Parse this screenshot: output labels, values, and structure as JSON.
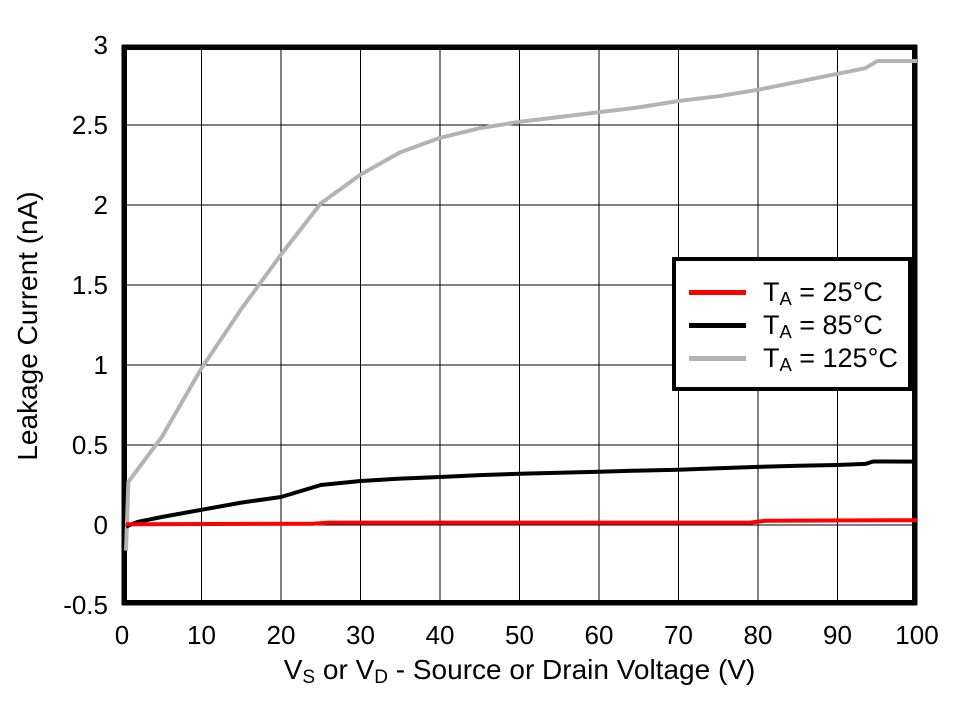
{
  "figure": {
    "y_axis": {
      "title": "Leakage Current (nA)",
      "ticks": [
        {
          "label": "3",
          "value": 3
        },
        {
          "label": "2.5",
          "value": 2.5
        },
        {
          "label": "2",
          "value": 2
        },
        {
          "label": "1.5",
          "value": 1.5
        },
        {
          "label": "1",
          "value": 1
        },
        {
          "label": "0.5",
          "value": 0.5
        },
        {
          "label": "0",
          "value": 0
        },
        {
          "label": "-0.5",
          "value": -0.5
        }
      ]
    },
    "x_axis": {
      "title_parts": [
        {
          "text": "V"
        },
        {
          "text": "S",
          "sub": true
        },
        {
          "text": " or V"
        },
        {
          "text": "D",
          "sub": true
        },
        {
          "text": " - Source or Drain Voltage (V)"
        }
      ],
      "ticks": [
        {
          "label": "0",
          "value": 0
        },
        {
          "label": "10",
          "value": 10
        },
        {
          "label": "20",
          "value": 20
        },
        {
          "label": "30",
          "value": 30
        },
        {
          "label": "40",
          "value": 40
        },
        {
          "label": "50",
          "value": 50
        },
        {
          "label": "60",
          "value": 60
        },
        {
          "label": "70",
          "value": 70
        },
        {
          "label": "80",
          "value": 80
        },
        {
          "label": "90",
          "value": 90
        },
        {
          "label": "100",
          "value": 100
        }
      ]
    },
    "legend": [
      {
        "pre": "T",
        "sub": "A",
        "rest": " = 25°C",
        "color": "#ff0000",
        "id": "ta-25c"
      },
      {
        "pre": "T",
        "sub": "A",
        "rest": " = 85°C",
        "color": "#000000",
        "id": "ta-85c"
      },
      {
        "pre": "T",
        "sub": "A",
        "rest": " = 125°C",
        "color": "#b3b3b3",
        "id": "ta-125c"
      }
    ],
    "colors": {
      "grid": "#000000",
      "border": "#000000",
      "background": "#ffffff"
    }
  },
  "chart_data": {
    "type": "line",
    "title": "",
    "xlabel": "VS or VD - Source or Drain Voltage (V)",
    "ylabel": "Leakage Current (nA)",
    "xlim": [
      0,
      100
    ],
    "ylim": [
      -0.5,
      3
    ],
    "x_ticks": [
      0,
      10,
      20,
      30,
      40,
      50,
      60,
      70,
      80,
      90,
      100
    ],
    "y_ticks": [
      -0.5,
      0,
      0.5,
      1,
      1.5,
      2,
      2.5,
      3
    ],
    "grid": true,
    "legend_position": "upper right",
    "series": [
      {
        "name": "TA = 125°C",
        "id": "ta-125c",
        "color": "#b3b3b3",
        "points": [
          [
            0.5,
            -0.16
          ],
          [
            0.8,
            0.27
          ],
          [
            5,
            0.55
          ],
          [
            10,
            0.98
          ],
          [
            15,
            1.35
          ],
          [
            20,
            1.69
          ],
          [
            25,
            2.01
          ],
          [
            30,
            2.19
          ],
          [
            35,
            2.33
          ],
          [
            40,
            2.42
          ],
          [
            45,
            2.48
          ],
          [
            50,
            2.52
          ],
          [
            55,
            2.55
          ],
          [
            60,
            2.58
          ],
          [
            65,
            2.61
          ],
          [
            70,
            2.65
          ],
          [
            75,
            2.68
          ],
          [
            80,
            2.72
          ],
          [
            85,
            2.77
          ],
          [
            90,
            2.82
          ],
          [
            93.5,
            2.855
          ],
          [
            95,
            2.9
          ],
          [
            100,
            2.9
          ]
        ]
      },
      {
        "name": "TA = 85°C",
        "id": "ta-85c",
        "color": "#000000",
        "points": [
          [
            0.5,
            -0.01
          ],
          [
            2,
            0.02
          ],
          [
            5,
            0.05
          ],
          [
            10,
            0.095
          ],
          [
            15,
            0.14
          ],
          [
            20,
            0.175
          ],
          [
            25,
            0.25
          ],
          [
            30,
            0.275
          ],
          [
            35,
            0.29
          ],
          [
            40,
            0.3
          ],
          [
            45,
            0.312
          ],
          [
            50,
            0.32
          ],
          [
            55,
            0.327
          ],
          [
            60,
            0.333
          ],
          [
            65,
            0.34
          ],
          [
            70,
            0.345
          ],
          [
            75,
            0.355
          ],
          [
            80,
            0.363
          ],
          [
            85,
            0.37
          ],
          [
            90,
            0.375
          ],
          [
            93.5,
            0.382
          ],
          [
            94.5,
            0.397
          ],
          [
            100,
            0.396
          ]
        ]
      },
      {
        "name": "TA = 25°C",
        "id": "ta-25c",
        "color": "#ff0000",
        "points": [
          [
            0.5,
            0.005
          ],
          [
            24,
            0.008
          ],
          [
            26,
            0.015
          ],
          [
            79,
            0.015
          ],
          [
            81,
            0.027
          ],
          [
            100,
            0.03
          ]
        ]
      }
    ]
  }
}
